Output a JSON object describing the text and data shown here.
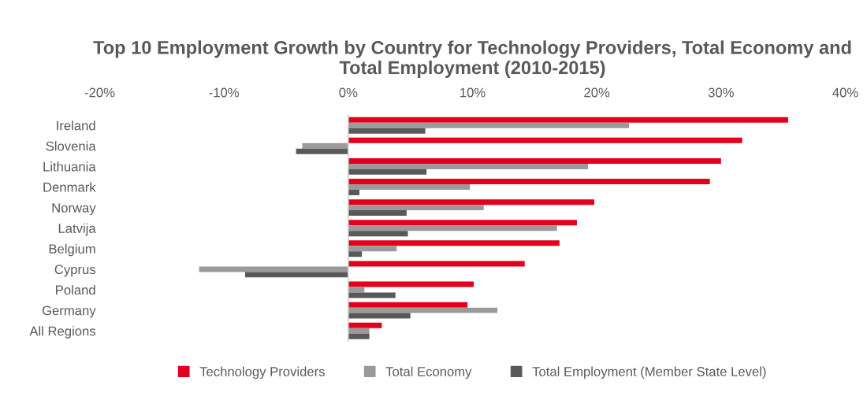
{
  "chart_data": {
    "type": "bar",
    "orientation": "horizontal",
    "title": "Top 10 Employment Growth by Country for Technology Providers, Total Economy and Total Employment (2010-2015)",
    "categories": [
      "Ireland",
      "Slovenia",
      "Lithuania",
      "Denmark",
      "Norway",
      "Latvija",
      "Belgium",
      "Cyprus",
      "Poland",
      "Germany",
      "All Regions"
    ],
    "series": [
      {
        "name": "Technology Providers",
        "color": "#e3001b",
        "values": [
          35.4,
          31.7,
          30.0,
          29.1,
          19.8,
          18.4,
          17.0,
          14.2,
          10.1,
          9.6,
          2.7
        ]
      },
      {
        "name": "Total Economy",
        "color": "#9a9a9a",
        "values": [
          22.6,
          -3.7,
          19.3,
          9.8,
          10.9,
          16.8,
          3.9,
          -12.0,
          1.3,
          12.0,
          1.7
        ]
      },
      {
        "name": "Total Employment (Member State Level)",
        "color": "#595959",
        "values": [
          6.2,
          -4.2,
          6.3,
          0.9,
          4.7,
          4.8,
          1.1,
          -8.3,
          3.8,
          5.0,
          1.7
        ]
      }
    ],
    "xlim": [
      -20,
      40
    ],
    "xticks": [
      {
        "value": -20,
        "label": "-20%"
      },
      {
        "value": -10,
        "label": "-10%"
      },
      {
        "value": 0,
        "label": "0%"
      },
      {
        "value": 10,
        "label": "10%"
      },
      {
        "value": 20,
        "label": "20%"
      },
      {
        "value": 30,
        "label": "30%"
      },
      {
        "value": 40,
        "label": "40%"
      }
    ],
    "legend": "bottom"
  }
}
